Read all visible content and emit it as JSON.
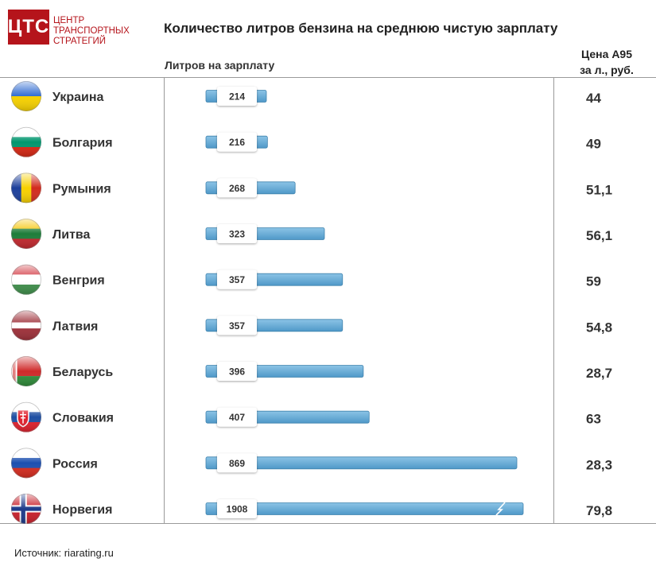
{
  "logo": {
    "mark": "ЦТС",
    "line1": "ЦЕНТР",
    "line2": "ТРАНСПОРТНЫХ",
    "line3": "СТРАТЕГИЙ",
    "color": "#b5141b"
  },
  "header": {
    "title": "Количество литров бензина на среднюю чистую зарплату",
    "bars_column": "Литров на зарплату",
    "price_column_line1": "Цена А95",
    "price_column_line2": "за л., руб."
  },
  "footer": {
    "source": "Источник: riarating.ru"
  },
  "colors": {
    "bar": "#6aaed6",
    "bar_stroke": "#3f82ad",
    "grid": "#9a9a9a"
  },
  "chart_data": {
    "type": "bar",
    "orientation": "horizontal",
    "title": "Количество литров бензина на среднюю чистую зарплату",
    "xlabel": "Литров на зарплату",
    "categories": [
      "Украина",
      "Болгария",
      "Румыния",
      "Литва",
      "Венгрия",
      "Латвия",
      "Беларусь",
      "Словакия",
      "Россия",
      "Норвегия"
    ],
    "values": [
      214,
      216,
      268,
      323,
      357,
      357,
      396,
      407,
      869,
      1908
    ],
    "axis_break_on": "Норвегия",
    "price_column": {
      "label": "Цена А95 за л., руб.",
      "values": [
        "44",
        "49",
        "51,1",
        "56,1",
        "59",
        "54,8",
        "28,7",
        "63",
        "28,3",
        "79,8"
      ]
    },
    "flags": [
      "ukraine-flag-icon",
      "bulgaria-flag-icon",
      "romania-flag-icon",
      "lithuania-flag-icon",
      "hungary-flag-icon",
      "latvia-flag-icon",
      "belarus-flag-icon",
      "slovakia-flag-icon",
      "russia-flag-icon",
      "norway-flag-icon"
    ]
  }
}
